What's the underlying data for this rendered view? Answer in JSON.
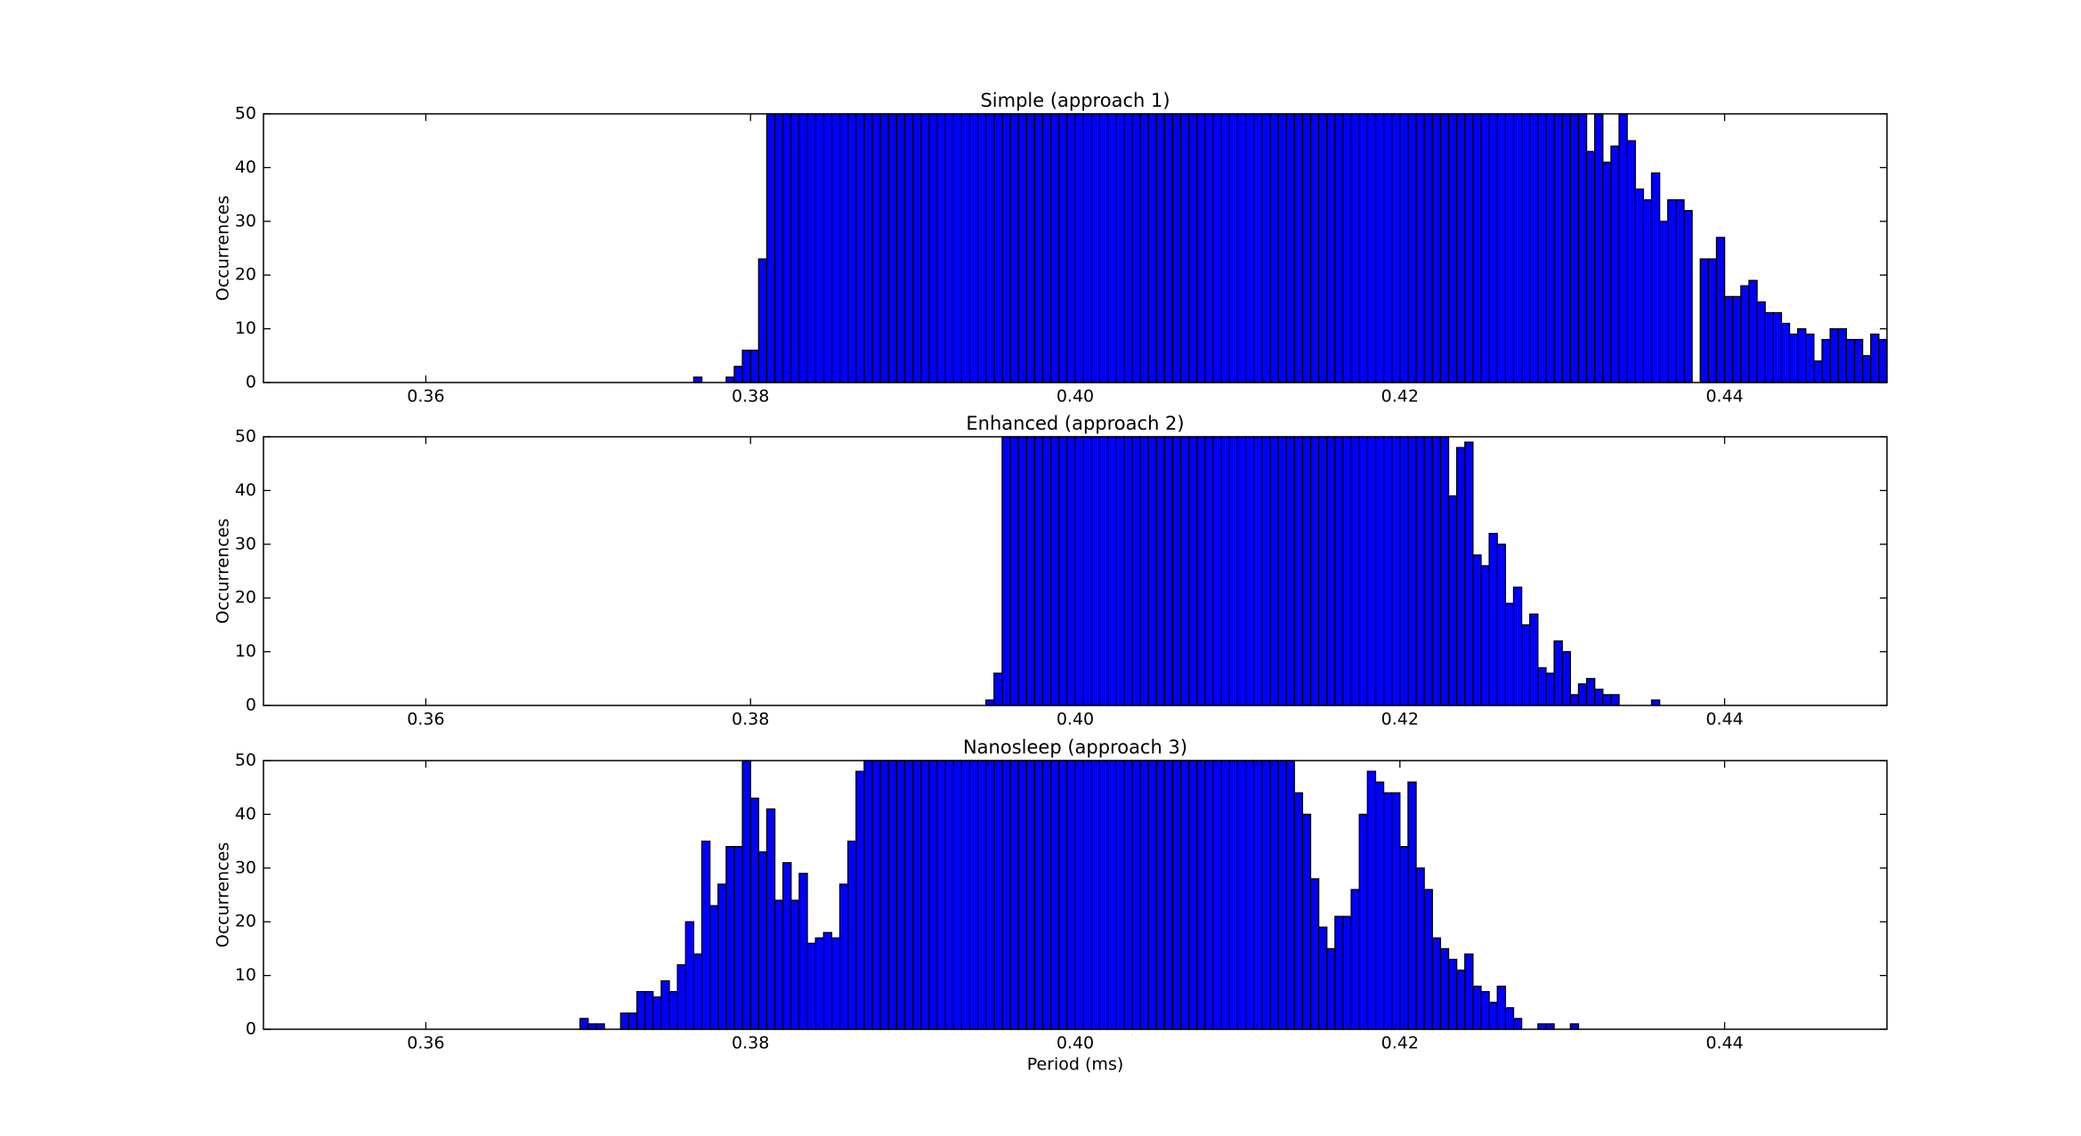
{
  "chart_data": [
    {
      "type": "histogram",
      "title": "Simple (approach 1)",
      "ylabel": "Occurrences",
      "color": "#0000ff",
      "edgecolor": "#000000",
      "xlim": [
        0.35,
        0.45
      ],
      "ylim": [
        0,
        50
      ],
      "xticks": [
        0.36,
        0.38,
        {
          "value": 0.4,
          "label": "0.40"
        },
        0.42,
        0.44
      ],
      "yticks": [
        0,
        10,
        20,
        30,
        40,
        50
      ],
      "bins": [
        0.3765,
        0.377,
        0.3775,
        0.378,
        0.3785,
        0.379,
        0.3795,
        0.38,
        0.3805,
        0.381,
        0.3815,
        0.382,
        0.3825,
        0.383,
        0.3835,
        0.384,
        0.3845,
        0.385,
        0.3855,
        0.386,
        0.3865,
        0.387,
        0.3875,
        0.388,
        0.3885,
        0.389,
        0.3895,
        0.39,
        0.3905,
        0.391,
        0.3915,
        0.392,
        0.3925,
        0.393,
        0.3935,
        0.394,
        0.3945,
        0.395,
        0.3955,
        0.396,
        0.3965,
        0.397,
        0.3975,
        0.398,
        0.3985,
        0.399,
        0.3995,
        0.4,
        0.4005,
        0.401,
        0.4015,
        0.402,
        0.4025,
        0.403,
        0.4035,
        0.404,
        0.4045,
        0.405,
        0.4055,
        0.406,
        0.4065,
        0.407,
        0.4075,
        0.408,
        0.4085,
        0.409,
        0.4095,
        0.41,
        0.4105,
        0.411,
        0.4115,
        0.412,
        0.4125,
        0.413,
        0.4135,
        0.414,
        0.4145,
        0.415,
        0.4155,
        0.416,
        0.4165,
        0.417,
        0.4175,
        0.418,
        0.4185,
        0.419,
        0.4195,
        0.42,
        0.4205,
        0.421,
        0.4215,
        0.422,
        0.4225,
        0.423,
        0.4235,
        0.424,
        0.4245,
        0.425,
        0.4255,
        0.426,
        0.4265,
        0.427,
        0.4275,
        0.428,
        0.4285,
        0.429,
        0.4295,
        0.43,
        0.4305,
        0.431,
        0.4315,
        0.432,
        0.4325,
        0.433,
        0.4335,
        0.434,
        0.4345,
        0.435,
        0.4355,
        0.436,
        0.4365,
        0.437,
        0.4375,
        0.438,
        0.4385,
        0.439,
        0.4395,
        0.44,
        0.4405,
        0.441,
        0.4415,
        0.442,
        0.4425,
        0.443,
        0.4435,
        0.444,
        0.4445,
        0.445,
        0.4455,
        0.446,
        0.4465,
        0.447,
        0.4475,
        0.448,
        0.4485,
        0.449,
        0.4495,
        0.45
      ],
      "values": [
        1,
        0,
        0,
        0,
        1,
        3,
        6,
        6,
        23,
        50,
        50,
        50,
        50,
        50,
        50,
        50,
        50,
        50,
        50,
        50,
        50,
        50,
        50,
        50,
        50,
        50,
        50,
        50,
        50,
        50,
        50,
        50,
        50,
        50,
        50,
        50,
        50,
        50,
        50,
        50,
        50,
        50,
        50,
        50,
        50,
        50,
        50,
        50,
        50,
        50,
        50,
        50,
        50,
        50,
        50,
        50,
        50,
        50,
        50,
        50,
        50,
        50,
        50,
        50,
        50,
        50,
        50,
        50,
        50,
        50,
        50,
        50,
        50,
        50,
        50,
        50,
        50,
        50,
        50,
        50,
        50,
        50,
        50,
        50,
        50,
        50,
        50,
        50,
        50,
        50,
        50,
        50,
        50,
        50,
        50,
        50,
        50,
        50,
        50,
        50,
        50,
        50,
        50,
        50,
        50,
        50,
        50,
        50,
        50,
        50,
        43,
        50,
        41,
        44,
        50,
        45,
        36,
        34,
        39,
        30,
        34,
        34,
        32,
        0,
        23,
        23,
        27,
        16,
        16,
        18,
        19,
        15,
        13,
        13,
        11,
        9,
        10,
        9,
        4,
        8,
        10,
        10,
        8,
        8,
        5,
        9,
        8
      ]
    },
    {
      "type": "histogram",
      "title": "Enhanced (approach 2)",
      "ylabel": "Occurrences",
      "color": "#0000ff",
      "edgecolor": "#000000",
      "xlim": [
        0.35,
        0.45
      ],
      "ylim": [
        0,
        50
      ],
      "xticks": [
        0.36,
        0.38,
        {
          "value": 0.4,
          "label": "0.40"
        },
        0.42,
        0.44
      ],
      "yticks": [
        0,
        10,
        20,
        30,
        40,
        50
      ],
      "bins": [
        0.3945,
        0.395,
        0.3955,
        0.396,
        0.3965,
        0.397,
        0.3975,
        0.398,
        0.3985,
        0.399,
        0.3995,
        0.4,
        0.4005,
        0.401,
        0.4015,
        0.402,
        0.4025,
        0.403,
        0.4035,
        0.404,
        0.4045,
        0.405,
        0.4055,
        0.406,
        0.4065,
        0.407,
        0.4075,
        0.408,
        0.4085,
        0.409,
        0.4095,
        0.41,
        0.4105,
        0.411,
        0.4115,
        0.412,
        0.4125,
        0.413,
        0.4135,
        0.414,
        0.4145,
        0.415,
        0.4155,
        0.416,
        0.4165,
        0.417,
        0.4175,
        0.418,
        0.4185,
        0.419,
        0.4195,
        0.42,
        0.4205,
        0.421,
        0.4215,
        0.422,
        0.4225,
        0.423,
        0.4235,
        0.424,
        0.4245,
        0.425,
        0.4255,
        0.426,
        0.4265,
        0.427,
        0.4275,
        0.428,
        0.4285,
        0.429,
        0.4295,
        0.43,
        0.4305,
        0.431,
        0.4315,
        0.432,
        0.4325,
        0.433,
        0.4335,
        0.434,
        0.4345,
        0.435,
        0.4355,
        0.436
      ],
      "values": [
        1,
        6,
        50,
        50,
        50,
        50,
        50,
        50,
        50,
        50,
        50,
        50,
        50,
        50,
        50,
        50,
        50,
        50,
        50,
        50,
        50,
        50,
        50,
        50,
        50,
        50,
        50,
        50,
        50,
        50,
        50,
        50,
        50,
        50,
        50,
        50,
        50,
        50,
        50,
        50,
        50,
        50,
        50,
        50,
        50,
        50,
        50,
        50,
        50,
        50,
        50,
        50,
        50,
        50,
        50,
        50,
        50,
        39,
        48,
        49,
        28,
        26,
        32,
        30,
        19,
        22,
        15,
        17,
        7,
        6,
        12,
        10,
        2,
        4,
        5,
        3,
        2,
        2,
        0,
        0,
        0,
        0,
        1
      ]
    },
    {
      "type": "histogram",
      "title": "Nanosleep (approach 3)",
      "ylabel": "Occurrences",
      "xlabel": "Period (ms)",
      "color": "#0000ff",
      "edgecolor": "#000000",
      "xlim": [
        0.35,
        0.45
      ],
      "ylim": [
        0,
        50
      ],
      "xticks": [
        0.36,
        0.38,
        {
          "value": 0.4,
          "label": "0.40"
        },
        0.42,
        0.44
      ],
      "yticks": [
        0,
        10,
        20,
        30,
        40,
        50
      ],
      "bins": [
        0.3695,
        0.37,
        0.3705,
        0.371,
        0.3715,
        0.372,
        0.3725,
        0.373,
        0.3735,
        0.374,
        0.3745,
        0.375,
        0.3755,
        0.376,
        0.3765,
        0.377,
        0.3775,
        0.378,
        0.3785,
        0.379,
        0.3795,
        0.38,
        0.3805,
        0.381,
        0.3815,
        0.382,
        0.3825,
        0.383,
        0.3835,
        0.384,
        0.3845,
        0.385,
        0.3855,
        0.386,
        0.3865,
        0.387,
        0.3875,
        0.388,
        0.3885,
        0.389,
        0.3895,
        0.39,
        0.3905,
        0.391,
        0.3915,
        0.392,
        0.3925,
        0.393,
        0.3935,
        0.394,
        0.3945,
        0.395,
        0.3955,
        0.396,
        0.3965,
        0.397,
        0.3975,
        0.398,
        0.3985,
        0.399,
        0.3995,
        0.4,
        0.4005,
        0.401,
        0.4015,
        0.402,
        0.4025,
        0.403,
        0.4035,
        0.404,
        0.4045,
        0.405,
        0.4055,
        0.406,
        0.4065,
        0.407,
        0.4075,
        0.408,
        0.4085,
        0.409,
        0.4095,
        0.41,
        0.4105,
        0.411,
        0.4115,
        0.412,
        0.4125,
        0.413,
        0.4135,
        0.414,
        0.4145,
        0.415,
        0.4155,
        0.416,
        0.4165,
        0.417,
        0.4175,
        0.418,
        0.4185,
        0.419,
        0.4195,
        0.42,
        0.4205,
        0.421,
        0.4215,
        0.422,
        0.4225,
        0.423,
        0.4235,
        0.424,
        0.4245,
        0.425,
        0.4255,
        0.426,
        0.4265,
        0.427,
        0.4275,
        0.428,
        0.4285,
        0.429,
        0.4295,
        0.43,
        0.4305,
        0.431
      ],
      "values": [
        2,
        1,
        1,
        0,
        0,
        3,
        3,
        7,
        7,
        6,
        9,
        7,
        12,
        20,
        14,
        35,
        23,
        27,
        34,
        34,
        50,
        43,
        33,
        41,
        24,
        31,
        24,
        29,
        16,
        17,
        18,
        17,
        27,
        35,
        48,
        50,
        50,
        50,
        50,
        50,
        50,
        50,
        50,
        50,
        50,
        50,
        50,
        50,
        50,
        50,
        50,
        50,
        50,
        50,
        50,
        50,
        50,
        50,
        50,
        50,
        50,
        50,
        50,
        50,
        50,
        50,
        50,
        50,
        50,
        50,
        50,
        50,
        50,
        50,
        50,
        50,
        50,
        50,
        50,
        50,
        50,
        50,
        50,
        50,
        50,
        50,
        50,
        50,
        44,
        40,
        28,
        19,
        15,
        21,
        21,
        26,
        40,
        48,
        46,
        44,
        44,
        34,
        46,
        30,
        26,
        17,
        15,
        13,
        11,
        14,
        8,
        7,
        5,
        8,
        4,
        2,
        0,
        0,
        1,
        1,
        0,
        0,
        1
      ]
    }
  ]
}
